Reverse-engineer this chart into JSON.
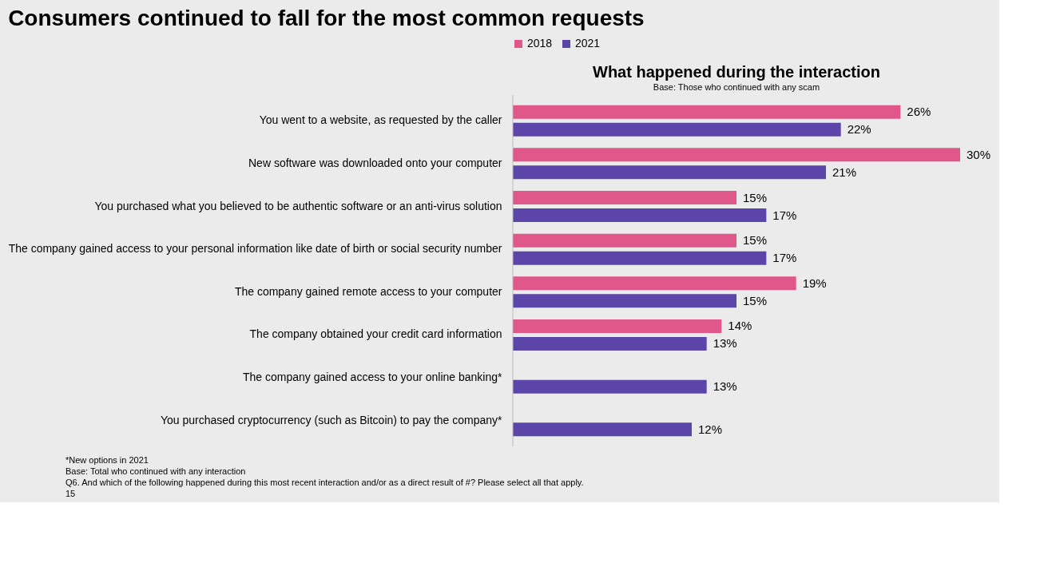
{
  "chart_data": {
    "type": "bar",
    "orientation": "horizontal",
    "title": "Consumers continued to fall for the most common requests",
    "subtitle": "What happened during the interaction",
    "categories": [
      "You went to a website, as requested by the caller",
      "New software was downloaded onto your computer",
      "You purchased what you believed to be authentic software or an anti-virus solution",
      "The company gained access to your personal information like date of birth or social security number",
      "The company gained remote access to your computer",
      "The company obtained your credit card information",
      "The company gained access to your online banking*",
      "You purchased cryptocurrency (such as Bitcoin) to pay the company*"
    ],
    "series": [
      {
        "name": "2018",
        "color": "#e0578a",
        "values": [
          26,
          30,
          15,
          15,
          19,
          14,
          null,
          null
        ],
        "value_labels": [
          "26%",
          "30%",
          "15%",
          "15%",
          "19%",
          "14%",
          null,
          null
        ]
      },
      {
        "name": "2021",
        "color": "#5b45a8",
        "values": [
          22,
          21,
          17,
          17,
          15,
          13,
          13,
          12
        ],
        "value_labels": [
          "22%",
          "21%",
          "17%",
          "17%",
          "15%",
          "13%",
          "13%",
          "12%"
        ]
      }
    ],
    "legend": "top",
    "annotations": [
      "Base: Those who continued with any scam",
      "*New options in 2021",
      "Base: Total who continued with any interaction",
      "Q6. And which of the following happened during this most recent interaction and/or as a direct result of #? Please select all that apply.",
      "15"
    ]
  }
}
